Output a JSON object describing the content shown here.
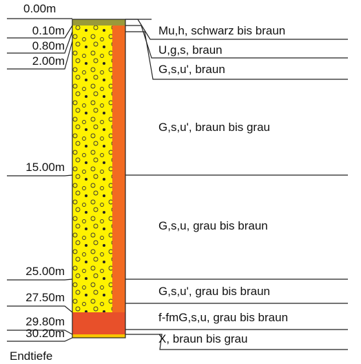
{
  "top": "0.00m",
  "layers": [
    {
      "depth": "0.10m",
      "description": "Mu,h, schwarz bis braun"
    },
    {
      "depth": "0.80m",
      "description": "U,g,s, braun"
    },
    {
      "depth": "2.00m",
      "description": "G,s,u', braun"
    },
    {
      "depth": "15.00m",
      "description": "G,s,u', braun bis grau"
    },
    {
      "depth": "25.00m",
      "description": "G,s,u, grau bis braun"
    },
    {
      "depth": "27.50m",
      "description": "G,s,u', grau bis braun"
    },
    {
      "depth": "29.80m",
      "description": "f-fmG,s,u, grau bis braun"
    },
    {
      "depth": "30.20m",
      "description": "X, braun bis grau"
    }
  ],
  "footer": "Endtiefe"
}
